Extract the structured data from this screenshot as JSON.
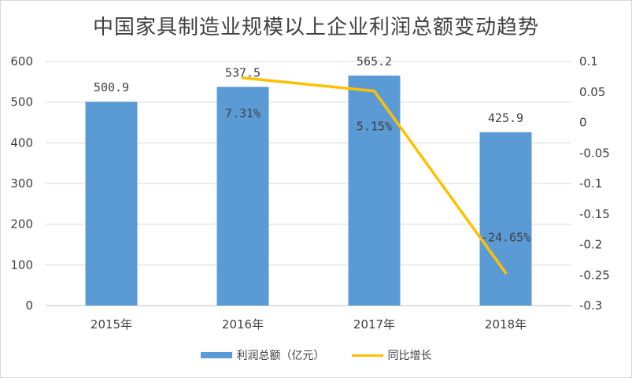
{
  "chart_data": {
    "type": "bar+line",
    "title": "中国家具制造业规模以上企业利润总额变动趋势",
    "categories": [
      "2015年",
      "2016年",
      "2017年",
      "2018年"
    ],
    "series": [
      {
        "name": "利润总额（亿元）",
        "type": "bar",
        "axis": "left",
        "values": [
          500.9,
          537.5,
          565.2,
          425.9
        ],
        "labels": [
          "500.9",
          "537.5",
          "565.2",
          "425.9"
        ],
        "color": "#5b9bd5"
      },
      {
        "name": "同比增长",
        "type": "line",
        "axis": "right",
        "values": [
          null,
          0.0731,
          0.0515,
          -0.2465
        ],
        "labels": [
          "",
          "7.31%",
          "5.15%",
          "-24.65%"
        ],
        "color": "#ffc000"
      }
    ],
    "y_left": {
      "ylim": [
        0,
        600
      ],
      "ticks": [
        "0",
        "100",
        "200",
        "300",
        "400",
        "500",
        "600"
      ]
    },
    "y_right": {
      "ylim": [
        -0.3,
        0.1
      ],
      "ticks": [
        "0.1",
        "0.05",
        "0",
        "-0.05",
        "-0.1",
        "-0.15",
        "-0.2",
        "-0.25",
        "-0.3"
      ]
    },
    "grid": true,
    "legend": "bottom"
  }
}
